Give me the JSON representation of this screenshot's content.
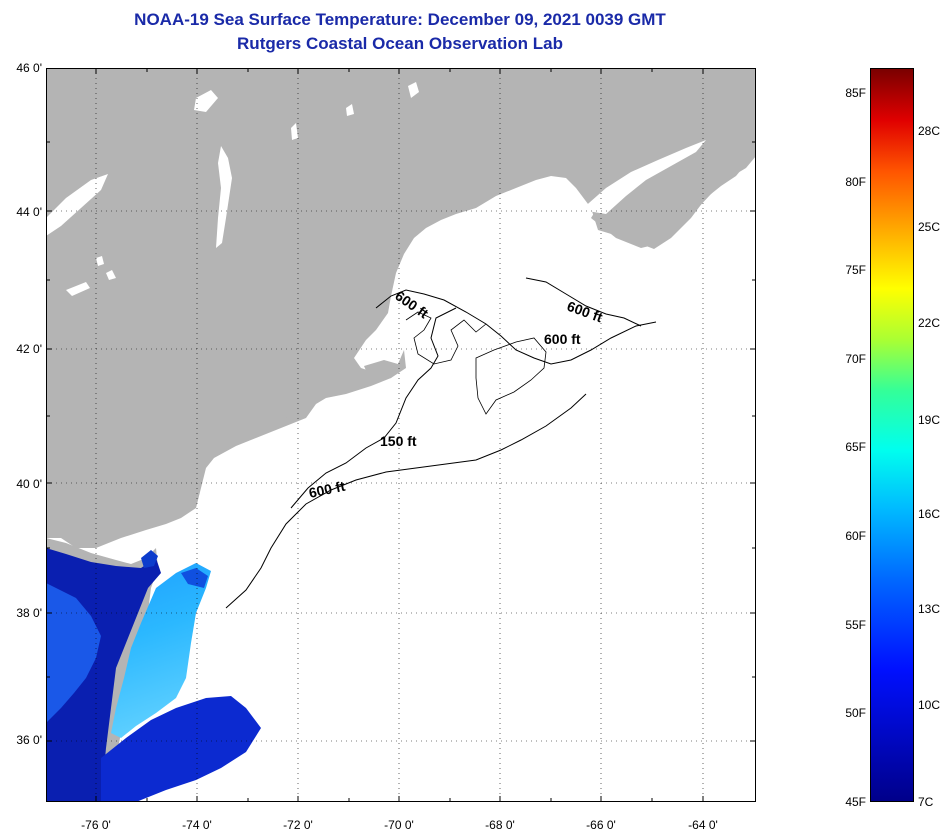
{
  "header": {
    "title": "NOAA-19 Sea Surface Temperature:  December 09, 2021 0039 GMT",
    "subtitle": "Rutgers Coastal Ocean Observation Lab"
  },
  "axes": {
    "lat_labels": [
      "46 0'",
      "44 0'",
      "42 0'",
      "40 0'",
      "38 0'",
      "36 0'"
    ],
    "lon_labels": [
      "-76 0'",
      "-74 0'",
      "-72 0'",
      "-70 0'",
      "-68 0'",
      "-66 0'",
      "-64 0'"
    ]
  },
  "map": {
    "region": "Mid-Atlantic Bight and Gulf of Maine",
    "contour_labels": [
      "600 ft",
      "600 ft",
      "600 ft",
      "150 ft",
      "600 ft"
    ]
  },
  "colorbar": {
    "fahrenheit_labels": [
      "85F",
      "80F",
      "75F",
      "70F",
      "65F",
      "60F",
      "55F",
      "50F",
      "45F"
    ],
    "celsius_labels": [
      "28C",
      "25C",
      "22C",
      "19C",
      "16C",
      "13C",
      "10C",
      "7C"
    ]
  },
  "colors": {
    "title": "#1a2aa8",
    "land": "#b4b4b4",
    "ocean_no_data": "#ffffff"
  }
}
